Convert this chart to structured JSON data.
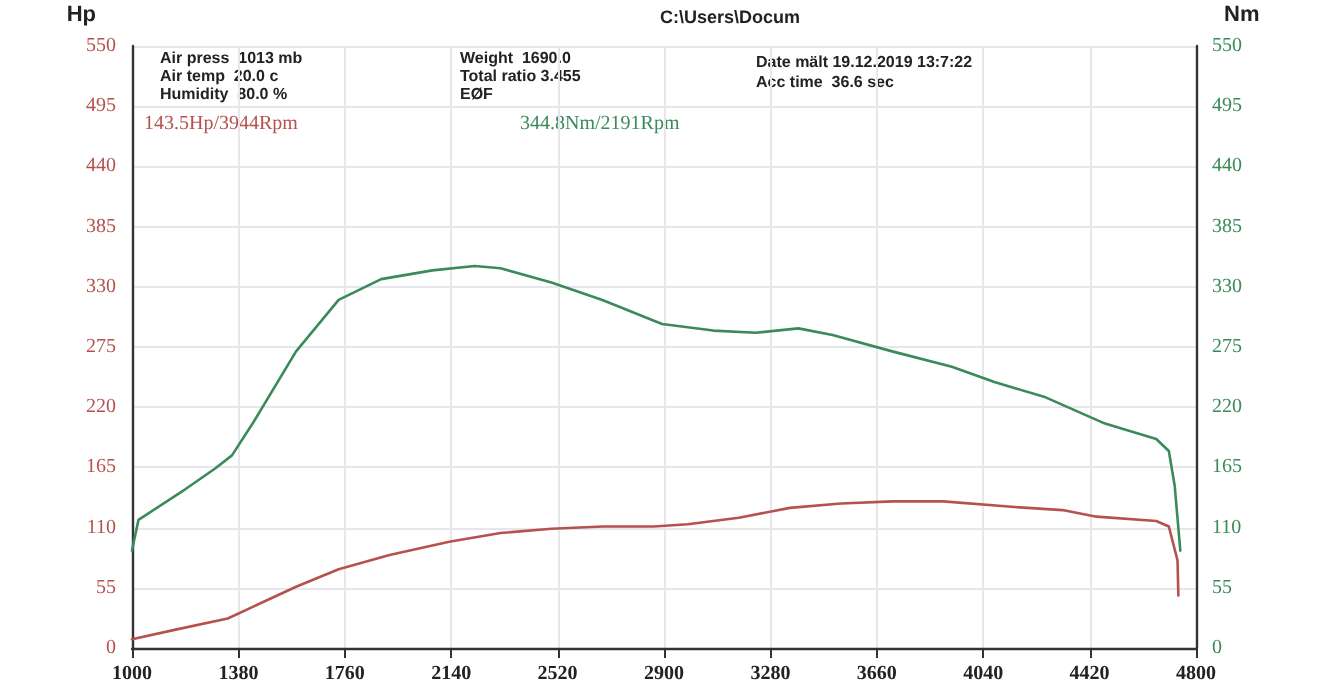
{
  "chart_data": {
    "type": "line",
    "ylabel": "Hp",
    "y2label": "Nm",
    "annotations": [
      "C:\\Users\\Docum",
      "Air press  1013 mb",
      "Air temp  20.0 c",
      "Humidity  80.0 %",
      "Weight  1690.0",
      "Total ratio 3.455",
      "EØF",
      "Date mält 19.12.2019 13:7:22",
      "Acc time  36.6 sec",
      "143.5Hp/3944Rpm",
      "344.8Nm/2191Rpm"
    ],
    "series": [
      {
        "color": "#b5524f",
        "x": [
          1000,
          1160,
          1342,
          1586,
          1738,
          1920,
          2133,
          2316,
          2498,
          2680,
          2863,
          2985,
          3167,
          3350,
          3532,
          3715,
          3897,
          4141,
          4323,
          4445,
          4658,
          4703,
          4734,
          4737
        ],
        "values": [
          8,
          17,
          27,
          56,
          72,
          85,
          97,
          105,
          109,
          111,
          111,
          113,
          119,
          128,
          132,
          134,
          134,
          129,
          126,
          120,
          116,
          111,
          80,
          48
        ]
      },
      {
        "color": "#3a8a5a",
        "axis": "y2",
        "x": [
          1000,
          1023,
          1190,
          1297,
          1357,
          1433,
          1586,
          1738,
          1890,
          2073,
          2224,
          2316,
          2498,
          2680,
          2893,
          3076,
          3228,
          3380,
          3502,
          3715,
          3928,
          4080,
          4263,
          4475,
          4658,
          4703,
          4724,
          4744
        ],
        "values": [
          89,
          117,
          145,
          164,
          176,
          206,
          271,
          318,
          337,
          345,
          349,
          347,
          334,
          318,
          296,
          290,
          288,
          292,
          286,
          271,
          257,
          243,
          229,
          205,
          191,
          180,
          148,
          89
        ]
      }
    ],
    "xlim": [
      1000,
      4800
    ],
    "xticks": [
      1000,
      1380,
      1760,
      2140,
      2520,
      2900,
      3280,
      3660,
      4040,
      4420,
      4800
    ],
    "ylim": [
      0,
      550
    ],
    "yticks": [
      0,
      55,
      110,
      165,
      220,
      275,
      330,
      385,
      440,
      495,
      550
    ],
    "y2lim": [
      0,
      550
    ],
    "y2ticks": [
      0,
      55,
      110,
      165,
      220,
      275,
      330,
      385,
      440,
      495,
      550
    ],
    "grid": true,
    "marker": "none",
    "line_style": "solid"
  }
}
